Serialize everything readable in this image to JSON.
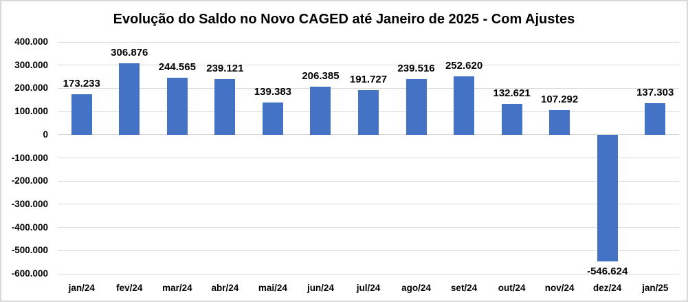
{
  "chart_data": {
    "type": "bar",
    "title": "Evolução do Saldo no Novo CAGED até Janeiro de 2025 - Com Ajustes",
    "categories": [
      "jan/24",
      "fev/24",
      "mar/24",
      "abr/24",
      "mai/24",
      "jun/24",
      "jul/24",
      "ago/24",
      "set/24",
      "out/24",
      "nov/24",
      "dez/24",
      "jan/25"
    ],
    "values": [
      173233,
      306876,
      244565,
      239121,
      139383,
      206385,
      191727,
      239516,
      252620,
      132621,
      107292,
      -546624,
      137303
    ],
    "value_labels": [
      "173.233",
      "306.876",
      "244.565",
      "239.121",
      "139.383",
      "206.385",
      "191.727",
      "239.516",
      "252.620",
      "132.621",
      "107.292",
      "-546.624",
      "137.303"
    ],
    "xlabel": "",
    "ylabel": "",
    "ylim": [
      -600000,
      400000
    ],
    "y_tick_step": 100000,
    "y_tick_labels": [
      "400.000",
      "300.000",
      "200.000",
      "100.000",
      "0",
      "-100.000",
      "-200.000",
      "-300.000",
      "-400.000",
      "-500.000",
      "-600.000"
    ],
    "grid": true,
    "legend": "none",
    "bar_color": "#4472C4",
    "gridline_color": "#D9D9D9",
    "background_color": "#FFFFFF",
    "border_color": "#D9D9D9",
    "text_color": "#000000"
  }
}
